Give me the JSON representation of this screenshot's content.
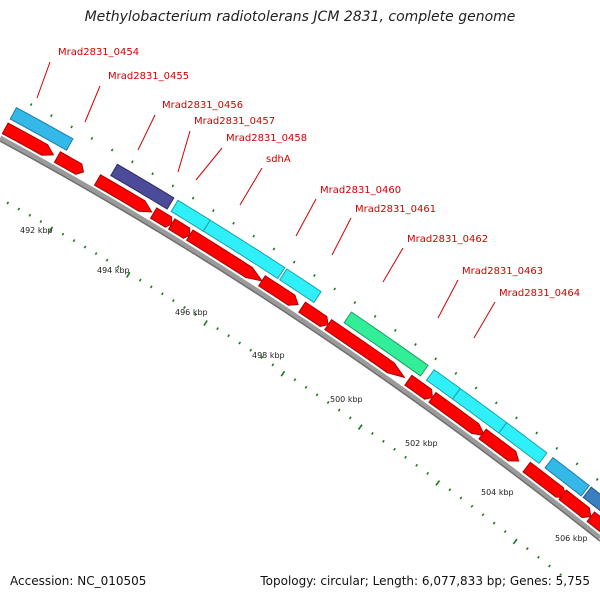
{
  "title": "Methylobacterium radiotolerans JCM 2831, complete genome",
  "footer": {
    "accession": "Accession: NC_010505",
    "topology": "Topology: circular; Length: 6,077,833 bp; Genes: 5,755"
  },
  "colors": {
    "backbone": "#8c8c8c",
    "cds": "#ff0000",
    "label": "#d40000",
    "tick": "#1a7a1a"
  },
  "tick_labels": [
    "492 kbp",
    "494 kbp",
    "496 kbp",
    "498 kbp",
    "500 kbp",
    "502 kbp",
    "504 kbp",
    "506 kbp"
  ],
  "gene_labels": [
    "Mrad2831_0454",
    "Mrad2831_0455",
    "Mrad2831_0456",
    "Mrad2831_0457",
    "Mrad2831_0458",
    "sdhA",
    "Mrad2831_0460",
    "Mrad2831_0461",
    "Mrad2831_0462",
    "Mrad2831_0463",
    "Mrad2831_0464"
  ]
}
